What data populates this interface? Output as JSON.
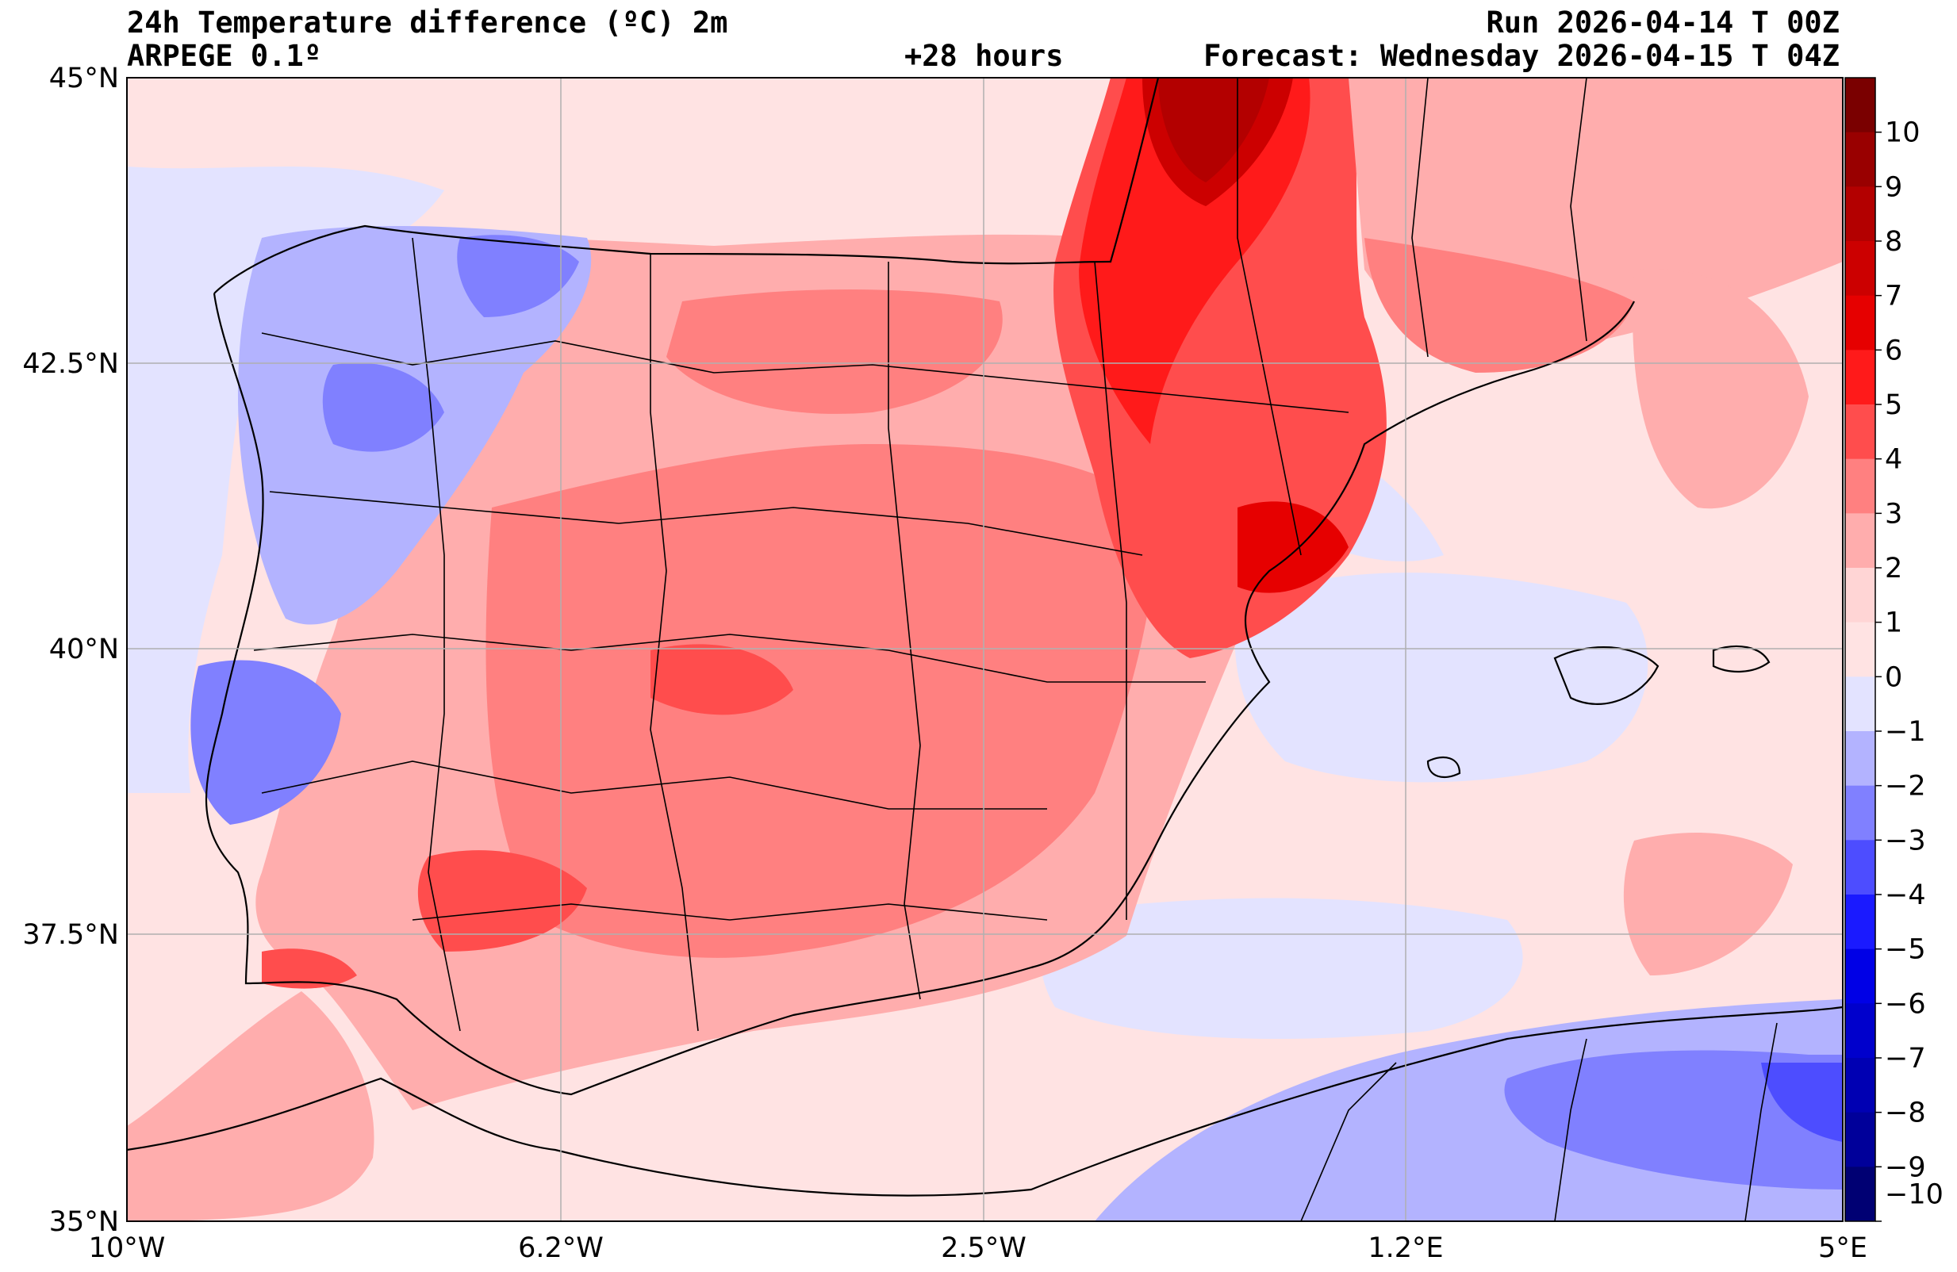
{
  "header": {
    "title": "24h Temperature difference (ºC) 2m",
    "model": "ARPEGE 0.1º",
    "lead": "+28 hours",
    "run": "Run 2026-04-14 T 00Z",
    "forecast": "Forecast: Wednesday 2026-04-15 T 04Z"
  },
  "axes": {
    "lat_labels": [
      "45°N",
      "42.5°N",
      "40°N",
      "37.5°N",
      "35°N"
    ],
    "lon_labels": [
      "10°W",
      "6.2°W",
      "2.5°W",
      "1.2°E",
      "5°E"
    ]
  },
  "colorbar": {
    "labels": [
      "10",
      "9",
      "8",
      "7",
      "6",
      "5",
      "4",
      "3",
      "2",
      "1",
      "0",
      "−1",
      "−2",
      "−3",
      "−4",
      "−5",
      "−6",
      "−7",
      "−8",
      "−9",
      "−10"
    ],
    "colors": [
      "#7a0000",
      "#990000",
      "#b30000",
      "#cc0000",
      "#e60000",
      "#ff1a1a",
      "#ff4d4d",
      "#ff8080",
      "#ffadad",
      "#ffd5d5",
      "#ffe3e3",
      "#e3e3ff",
      "#b3b3ff",
      "#8080ff",
      "#4d4dff",
      "#1a1aff",
      "#0000e6",
      "#0000cc",
      "#0000b3",
      "#00009a",
      "#000073"
    ]
  }
}
